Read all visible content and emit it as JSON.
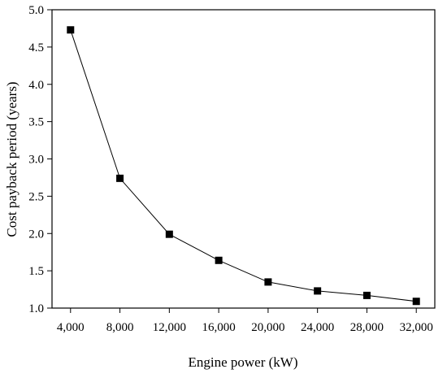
{
  "chart_data": {
    "type": "line",
    "title": "",
    "xlabel": "Engine power (kW)",
    "ylabel": "Cost payback period (years)",
    "xlim": [
      2500,
      33500
    ],
    "ylim": [
      1.0,
      5.0
    ],
    "x_ticks": [
      4000,
      8000,
      12000,
      16000,
      20000,
      24000,
      28000,
      32000
    ],
    "x_tick_labels": [
      "4,000",
      "8,000",
      "12,000",
      "16,000",
      "20,000",
      "24,000",
      "28,000",
      "32,000"
    ],
    "y_ticks": [
      1.0,
      1.5,
      2.0,
      2.5,
      3.0,
      3.5,
      4.0,
      4.5,
      5.0
    ],
    "y_tick_labels": [
      "1.0",
      "1.5",
      "2.0",
      "2.5",
      "3.0",
      "3.5",
      "4.0",
      "4.5",
      "5.0"
    ],
    "grid": false,
    "legend": "none",
    "marker": "square",
    "color": "#000000",
    "series": [
      {
        "x": [
          4000,
          8000,
          12000,
          16000,
          20000,
          24000,
          28000,
          32000
        ],
        "y": [
          4.73,
          2.74,
          1.99,
          1.64,
          1.35,
          1.23,
          1.17,
          1.09
        ]
      }
    ]
  }
}
